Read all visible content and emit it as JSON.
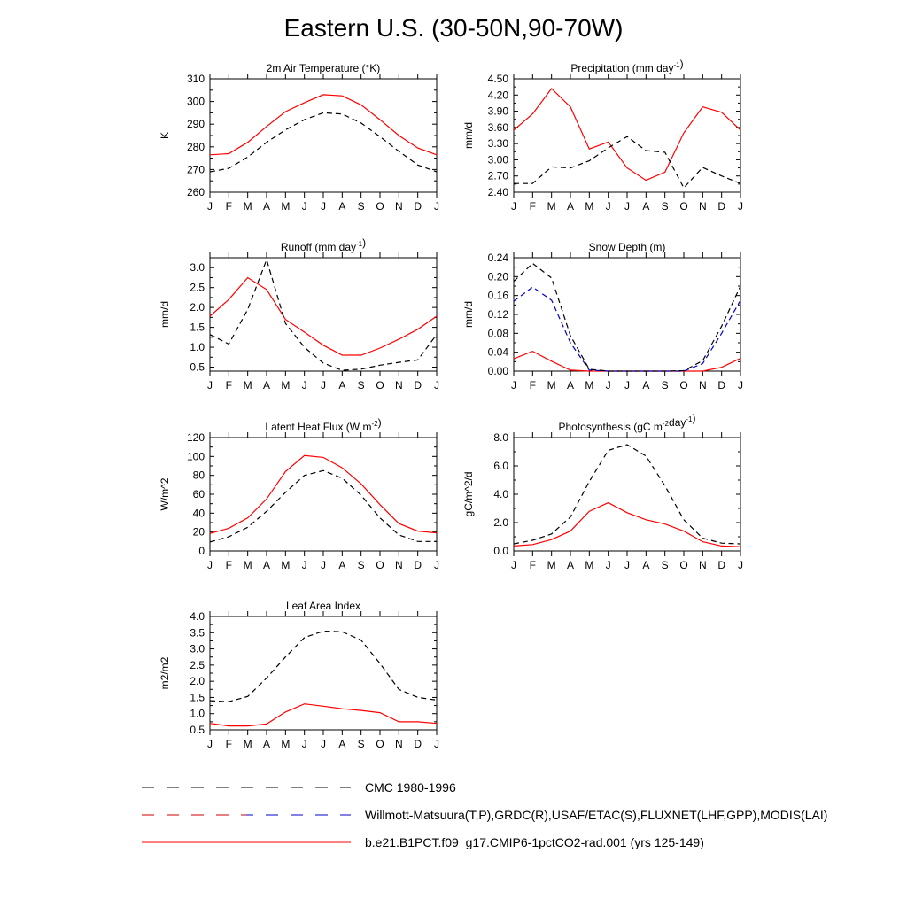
{
  "title": "Eastern U.S. (30-50N,90-70W)",
  "colors": {
    "model": "#ff0000",
    "cmc": "#000000",
    "obs_red": "#cc0000",
    "obs_blue": "#0000cc"
  },
  "legend": {
    "cmc": "CMC 1980-1996",
    "obs": "Willmott-Matsuura(T,P),GRDC(R),USAF/ETAC(S),FLUXNET(LHF,GPP),MODIS(LAI)",
    "model": "b.e21.B1PCT.f09_g17.CMIP6-1pctCO2-rad.001 (yrs 125-149)"
  },
  "chart_data": [
    {
      "type": "line",
      "title": "2m Air Temperature (°K)",
      "ylabel": "K",
      "categories": [
        "J",
        "F",
        "M",
        "A",
        "M",
        "J",
        "J",
        "A",
        "S",
        "O",
        "N",
        "D",
        "J"
      ],
      "ylim": [
        260,
        310
      ],
      "yticks": [
        "260",
        "270",
        "280",
        "290",
        "300",
        "310"
      ],
      "series": [
        {
          "style": "model",
          "values": [
            276.5,
            277,
            282,
            289,
            295.5,
            299.5,
            303,
            302.5,
            298.5,
            292,
            285,
            279.5,
            276.5
          ]
        },
        {
          "style": "obs",
          "values": [
            269,
            270.5,
            275.5,
            282,
            287.5,
            292,
            295,
            294.5,
            290.5,
            284.5,
            278,
            272,
            269
          ]
        }
      ]
    },
    {
      "type": "line",
      "title": "Precipitation (mm day⁻¹)",
      "ylabel": "mm/d",
      "categories": [
        "J",
        "F",
        "M",
        "A",
        "M",
        "J",
        "J",
        "A",
        "S",
        "O",
        "N",
        "D",
        "J"
      ],
      "ylim": [
        2.4,
        4.5
      ],
      "yticks": [
        "2.40",
        "2.70",
        "3.00",
        "3.30",
        "3.60",
        "3.90",
        "4.20",
        "4.50"
      ],
      "series": [
        {
          "style": "model",
          "values": [
            3.55,
            3.85,
            4.32,
            3.98,
            3.2,
            3.33,
            2.85,
            2.62,
            2.77,
            3.5,
            3.98,
            3.88,
            3.55
          ]
        },
        {
          "style": "obs",
          "values": [
            2.56,
            2.56,
            2.87,
            2.85,
            2.98,
            3.22,
            3.43,
            3.17,
            3.14,
            2.48,
            2.86,
            2.7,
            2.56
          ]
        }
      ]
    },
    {
      "type": "line",
      "title": "Runoff (mm day⁻¹)",
      "ylabel": "mm/d",
      "categories": [
        "J",
        "F",
        "M",
        "A",
        "M",
        "J",
        "J",
        "A",
        "S",
        "O",
        "N",
        "D",
        "J"
      ],
      "ylim": [
        0.4,
        3.25
      ],
      "yticks": [
        "0.5",
        "1.0",
        "1.5",
        "2.0",
        "2.5",
        "3.0"
      ],
      "series": [
        {
          "style": "model",
          "values": [
            1.78,
            2.2,
            2.75,
            2.45,
            1.7,
            1.38,
            1.05,
            0.8,
            0.8,
            0.98,
            1.2,
            1.45,
            1.78
          ]
        },
        {
          "style": "obs",
          "values": [
            1.32,
            1.08,
            1.95,
            3.2,
            1.6,
            1.0,
            0.6,
            0.42,
            0.45,
            0.55,
            0.62,
            0.68,
            1.32
          ]
        }
      ]
    },
    {
      "type": "line",
      "title": "Snow Depth (m)",
      "ylabel": "mm/d",
      "categories": [
        "J",
        "F",
        "M",
        "A",
        "M",
        "J",
        "J",
        "A",
        "S",
        "O",
        "N",
        "D",
        "J"
      ],
      "ylim": [
        0,
        0.24
      ],
      "yticks": [
        "0.00",
        "0.04",
        "0.08",
        "0.12",
        "0.16",
        "0.20",
        "0.24"
      ],
      "series": [
        {
          "style": "model",
          "values": [
            0.026,
            0.042,
            0.021,
            0.002,
            0.0,
            0.0,
            0.0,
            0.0,
            0.0,
            0.0,
            0.0,
            0.008,
            0.027
          ]
        },
        {
          "style": "obs",
          "values": [
            0.148,
            0.178,
            0.15,
            0.06,
            0.002,
            0.0,
            0.0,
            0.0,
            0.0,
            0.0,
            0.016,
            0.08,
            0.15
          ]
        },
        {
          "style": "cmc",
          "values": [
            0.19,
            0.228,
            0.197,
            0.075,
            0.004,
            0.0,
            0.0,
            0.0,
            0.0,
            0.001,
            0.022,
            0.095,
            0.18
          ]
        }
      ]
    },
    {
      "type": "line",
      "title": "Latent Heat Flux (W m⁻²)",
      "ylabel": "W/m^2",
      "categories": [
        "J",
        "F",
        "M",
        "A",
        "M",
        "J",
        "J",
        "A",
        "S",
        "O",
        "N",
        "D",
        "J"
      ],
      "ylim": [
        0,
        120
      ],
      "yticks": [
        "0",
        "20",
        "40",
        "60",
        "80",
        "100",
        "120"
      ],
      "series": [
        {
          "style": "model",
          "values": [
            18.5,
            24,
            35,
            55,
            84,
            101,
            99,
            88,
            71,
            49,
            29,
            21,
            19
          ]
        },
        {
          "style": "obs",
          "values": [
            9.5,
            15,
            25,
            42,
            62,
            80,
            85,
            77,
            59,
            35,
            17,
            10,
            10
          ]
        }
      ]
    },
    {
      "type": "line",
      "title": "Photosynthesis (gC m⁻²day⁻¹)",
      "ylabel": "gC/m^2/d",
      "categories": [
        "J",
        "F",
        "M",
        "A",
        "M",
        "J",
        "J",
        "A",
        "S",
        "O",
        "N",
        "D",
        "J"
      ],
      "ylim": [
        0,
        8.0
      ],
      "yticks": [
        "0.0",
        "2.0",
        "4.0",
        "6.0",
        "8.0"
      ],
      "series": [
        {
          "style": "model",
          "values": [
            0.35,
            0.45,
            0.8,
            1.4,
            2.8,
            3.4,
            2.7,
            2.2,
            1.9,
            1.4,
            0.65,
            0.35,
            0.3
          ]
        },
        {
          "style": "obs",
          "values": [
            0.5,
            0.75,
            1.2,
            2.4,
            4.9,
            7.1,
            7.5,
            6.7,
            4.6,
            2.2,
            0.9,
            0.55,
            0.5
          ]
        }
      ]
    },
    {
      "type": "line",
      "title": "Leaf Area Index",
      "ylabel": "m2/m2",
      "categories": [
        "J",
        "F",
        "M",
        "A",
        "M",
        "J",
        "J",
        "A",
        "S",
        "O",
        "N",
        "D",
        "J"
      ],
      "ylim": [
        0.5,
        4.0
      ],
      "yticks": [
        "0.5",
        "1.0",
        "1.5",
        "2.0",
        "2.5",
        "3.0",
        "3.5",
        "4.0"
      ],
      "series": [
        {
          "style": "model",
          "values": [
            0.7,
            0.62,
            0.62,
            0.68,
            1.05,
            1.3,
            1.23,
            1.15,
            1.1,
            1.03,
            0.75,
            0.75,
            0.7
          ]
        },
        {
          "style": "obs",
          "values": [
            1.4,
            1.37,
            1.53,
            2.1,
            2.75,
            3.35,
            3.55,
            3.53,
            3.27,
            2.55,
            1.75,
            1.5,
            1.42
          ]
        }
      ]
    }
  ]
}
